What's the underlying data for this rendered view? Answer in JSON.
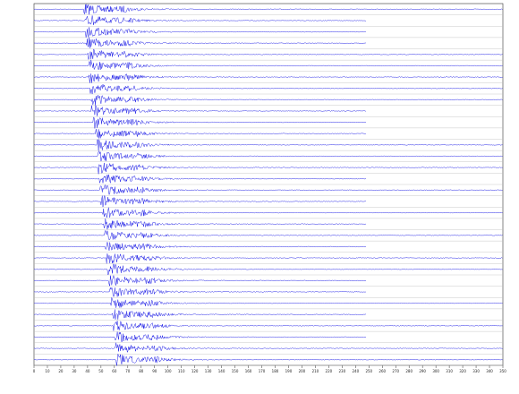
{
  "chart_data": {
    "type": "seismogram",
    "color": "#1a1ae6",
    "xlim": [
      0,
      350
    ],
    "xticks": [
      0,
      10,
      20,
      30,
      40,
      50,
      60,
      70,
      80,
      90,
      100,
      110,
      120,
      130,
      140,
      150,
      160,
      170,
      180,
      190,
      200,
      210,
      220,
      230,
      240,
      250,
      260,
      270,
      280,
      290,
      300,
      310,
      320,
      330,
      340,
      350
    ],
    "onsets": [
      37,
      38,
      38.5,
      39,
      40,
      41,
      41,
      42,
      42.5,
      43,
      44,
      46,
      47,
      47.5,
      48,
      49,
      49.5,
      50,
      51,
      52,
      52.5,
      53,
      54,
      55,
      56,
      56.5,
      57,
      58,
      59,
      60,
      60.5,
      61
    ],
    "ends": [
      350,
      248,
      248,
      248,
      350,
      350,
      350,
      350,
      350,
      248,
      248,
      248,
      350,
      350,
      350,
      248,
      350,
      248,
      350,
      248,
      350,
      248,
      350,
      350,
      248,
      248,
      350,
      248,
      350,
      248,
      350,
      350
    ]
  }
}
